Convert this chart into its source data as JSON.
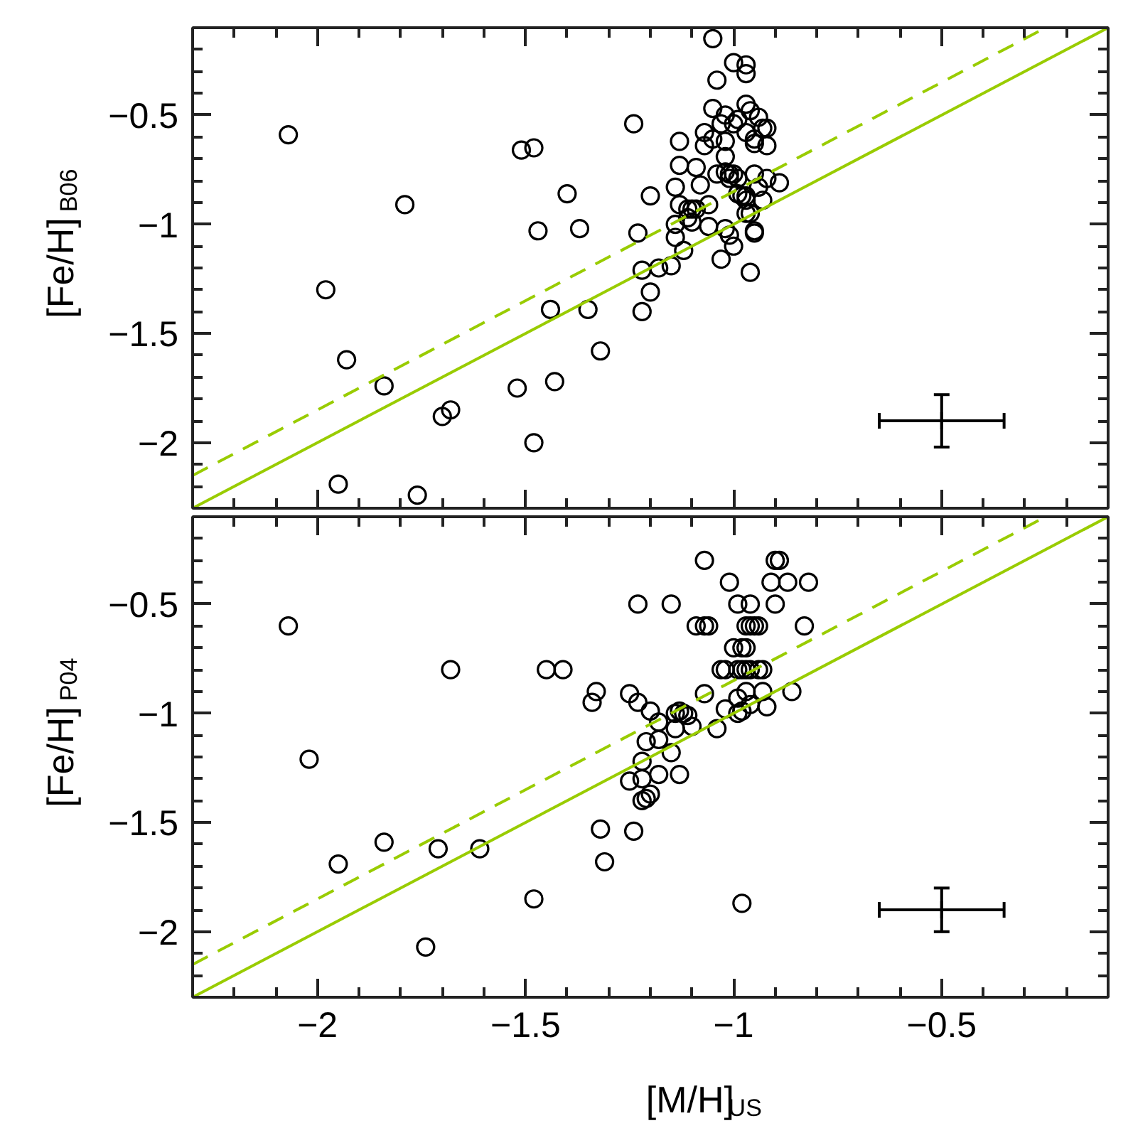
{
  "chart_data": [
    {
      "type": "scatter",
      "ylabel": "[Fe/H]$_{B06}$",
      "xlim": [
        -2.3,
        -0.1
      ],
      "ylim": [
        -2.3,
        -0.1
      ],
      "yticks": [
        {
          "value": -2.2,
          "label": null
        },
        {
          "value": -2.1,
          "label": null
        },
        {
          "value": -2,
          "label": "−2"
        },
        {
          "value": -1.9,
          "label": null
        },
        {
          "value": -1.8,
          "label": null
        },
        {
          "value": -1.7,
          "label": null
        },
        {
          "value": -1.6,
          "label": null
        },
        {
          "value": -1.5,
          "label": "−1.5"
        },
        {
          "value": -1.4,
          "label": null
        },
        {
          "value": -1.3,
          "label": null
        },
        {
          "value": -1.2,
          "label": null
        },
        {
          "value": -1.1,
          "label": null
        },
        {
          "value": -1,
          "label": "−1"
        },
        {
          "value": -0.9,
          "label": null
        },
        {
          "value": -0.8,
          "label": null
        },
        {
          "value": -0.7,
          "label": null
        },
        {
          "value": -0.6,
          "label": null
        },
        {
          "value": -0.5,
          "label": "−0.5"
        },
        {
          "value": -0.4,
          "label": null
        },
        {
          "value": -0.3,
          "label": null
        },
        {
          "value": -0.2,
          "label": null
        }
      ],
      "tick_labels": "y",
      "series": [
        {
          "color": "#000000",
          "marker": "circle",
          "x": [
            -2.07,
            -1.98,
            -1.95,
            -1.93,
            -1.84,
            -1.79,
            -1.76,
            -1.7,
            -1.68,
            -1.52,
            -1.51,
            -1.48,
            -1.48,
            -1.47,
            -1.44,
            -1.43,
            -1.4,
            -1.37,
            -1.35,
            -1.32,
            -1.24,
            -1.23,
            -1.22,
            -1.22,
            -1.2,
            -1.2,
            -1.18,
            -1.15,
            -1.14,
            -1.14,
            -1.14,
            -1.13,
            -1.13,
            -1.13,
            -1.12,
            -1.05,
            -1.0,
            -0.97,
            -0.97,
            -1.04,
            -0.97,
            -1.05,
            -0.96,
            -1.02,
            -0.99,
            -0.94,
            -1.03,
            -1.0,
            -0.93,
            -0.92,
            -0.97,
            -1.07,
            -1.05,
            -1.07,
            -1.02,
            -0.95,
            -0.95,
            -0.92,
            -1.02,
            -1.09,
            -1.04,
            -1.02,
            -1.01,
            -1.01,
            -1.0,
            -0.99,
            -0.95,
            -0.92,
            -0.89,
            -0.94,
            -1.08,
            -0.99,
            -0.98,
            -0.97,
            -0.97,
            -0.93,
            -1.06,
            -1.11,
            -1.1,
            -1.09,
            -0.97,
            -0.96,
            -1.11,
            -1.1,
            -1.06,
            -1.02,
            -1.01,
            -0.95,
            -0.95,
            -1.0,
            -1.03,
            -0.96
          ],
          "values": [
            -0.59,
            -1.3,
            -2.19,
            -1.62,
            -1.74,
            -0.91,
            -2.24,
            -1.88,
            -1.85,
            -1.75,
            -0.66,
            -0.65,
            -2.0,
            -1.03,
            -1.39,
            -1.72,
            -0.86,
            -1.02,
            -1.39,
            -1.58,
            -0.54,
            -1.04,
            -1.4,
            -1.21,
            -0.87,
            -1.31,
            -1.2,
            -1.19,
            -1.06,
            -1.0,
            -0.83,
            -0.73,
            -0.62,
            -0.91,
            -1.12,
            -0.15,
            -0.26,
            -0.27,
            -0.31,
            -0.34,
            -0.45,
            -0.47,
            -0.48,
            -0.5,
            -0.52,
            -0.51,
            -0.54,
            -0.54,
            -0.56,
            -0.56,
            -0.58,
            -0.58,
            -0.61,
            -0.64,
            -0.62,
            -0.61,
            -0.63,
            -0.64,
            -0.69,
            -0.74,
            -0.77,
            -0.76,
            -0.77,
            -0.79,
            -0.77,
            -0.79,
            -0.77,
            -0.79,
            -0.81,
            -0.83,
            -0.82,
            -0.86,
            -0.87,
            -0.89,
            -0.87,
            -0.89,
            -0.91,
            -0.93,
            -0.93,
            -0.93,
            -0.95,
            -0.95,
            -0.97,
            -0.99,
            -1.01,
            -1.02,
            -1.05,
            -1.03,
            -1.04,
            -1.1,
            -1.16,
            -1.22
          ]
        },
        {
          "type": "line",
          "color": "#99cc00",
          "line_style": "solid",
          "x": [
            -2.3,
            -0.1
          ],
          "values": [
            -2.3,
            -0.1
          ]
        },
        {
          "type": "line",
          "color": "#99cc00",
          "line_style": "dashed",
          "x": [
            -2.3,
            -0.25
          ],
          "values": [
            -2.15,
            -0.1
          ]
        },
        {
          "color": "#000000",
          "marker": "cross",
          "x": [
            -0.5
          ],
          "values": [
            -1.9
          ],
          "errors": [
            0.12
          ],
          "xerrors": [
            0.15
          ]
        }
      ]
    },
    {
      "type": "scatter",
      "xlabel": "[M/H]$_{US}$",
      "ylabel": "[Fe/H]$_{P04}$",
      "xlim": [
        -2.3,
        -0.1
      ],
      "ylim": [
        -2.3,
        -0.1
      ],
      "xticks": [
        {
          "value": -2.2,
          "label": null
        },
        {
          "value": -2.1,
          "label": null
        },
        {
          "value": -2,
          "label": "−2"
        },
        {
          "value": -1.9,
          "label": null
        },
        {
          "value": -1.8,
          "label": null
        },
        {
          "value": -1.7,
          "label": null
        },
        {
          "value": -1.6,
          "label": null
        },
        {
          "value": -1.5,
          "label": "−1.5"
        },
        {
          "value": -1.4,
          "label": null
        },
        {
          "value": -1.3,
          "label": null
        },
        {
          "value": -1.2,
          "label": null
        },
        {
          "value": -1.1,
          "label": null
        },
        {
          "value": -1,
          "label": "−1"
        },
        {
          "value": -0.9,
          "label": null
        },
        {
          "value": -0.8,
          "label": null
        },
        {
          "value": -0.7,
          "label": null
        },
        {
          "value": -0.6,
          "label": null
        },
        {
          "value": -0.5,
          "label": "−0.5"
        },
        {
          "value": -0.4,
          "label": null
        },
        {
          "value": -0.3,
          "label": null
        },
        {
          "value": -0.2,
          "label": null
        }
      ],
      "yticks": [
        {
          "value": -2.2,
          "label": null
        },
        {
          "value": -2.1,
          "label": null
        },
        {
          "value": -2,
          "label": "−2"
        },
        {
          "value": -1.9,
          "label": null
        },
        {
          "value": -1.8,
          "label": null
        },
        {
          "value": -1.7,
          "label": null
        },
        {
          "value": -1.6,
          "label": null
        },
        {
          "value": -1.5,
          "label": "−1.5"
        },
        {
          "value": -1.4,
          "label": null
        },
        {
          "value": -1.3,
          "label": null
        },
        {
          "value": -1.2,
          "label": null
        },
        {
          "value": -1.1,
          "label": null
        },
        {
          "value": -1,
          "label": "−1"
        },
        {
          "value": -0.9,
          "label": null
        },
        {
          "value": -0.8,
          "label": null
        },
        {
          "value": -0.7,
          "label": null
        },
        {
          "value": -0.6,
          "label": null
        },
        {
          "value": -0.5,
          "label": "−0.5"
        },
        {
          "value": -0.4,
          "label": null
        },
        {
          "value": -0.3,
          "label": null
        },
        {
          "value": -0.2,
          "label": null
        }
      ],
      "series": [
        {
          "color": "#000000",
          "marker": "circle",
          "x": [
            -2.07,
            -2.02,
            -1.95,
            -1.84,
            -1.74,
            -1.71,
            -1.68,
            -1.61,
            -1.48,
            -1.45,
            -1.41,
            -1.34,
            -1.33,
            -1.32,
            -1.31,
            -1.25,
            -1.25,
            -1.24,
            -1.23,
            -1.23,
            -1.22,
            -1.22,
            -1.22,
            -1.21,
            -1.2,
            -1.21,
            -1.2,
            -1.18,
            -1.18,
            -1.18,
            -1.15,
            -1.15,
            -1.14,
            -1.14,
            -1.13,
            -1.07,
            -0.9,
            -0.89,
            -1.01,
            -0.91,
            -0.87,
            -0.82,
            -0.99,
            -0.96,
            -0.9,
            -1.09,
            -1.07,
            -1.06,
            -0.97,
            -0.96,
            -0.95,
            -0.94,
            -0.83,
            -1.0,
            -0.98,
            -0.97,
            -1.03,
            -1.02,
            -0.99,
            -0.98,
            -0.97,
            -0.96,
            -0.94,
            -0.93,
            -1.07,
            -1.13,
            -1.12,
            -1.11,
            -1.1,
            -1.04,
            -1.02,
            -0.99,
            -0.99,
            -0.98,
            -0.97,
            -0.96,
            -0.93,
            -0.92,
            -0.86,
            -0.98
          ],
          "values": [
            -0.6,
            -1.21,
            -1.69,
            -1.59,
            -2.07,
            -1.62,
            -0.8,
            -1.62,
            -1.85,
            -0.8,
            -0.8,
            -0.95,
            -0.9,
            -1.53,
            -1.68,
            -0.91,
            -1.31,
            -1.54,
            -0.5,
            -0.95,
            -1.22,
            -1.3,
            -1.4,
            -1.39,
            -1.37,
            -1.13,
            -0.99,
            -1.04,
            -1.12,
            -1.28,
            -0.5,
            -1.18,
            -1.07,
            -1.0,
            -1.28,
            -0.3,
            -0.3,
            -0.3,
            -0.4,
            -0.4,
            -0.4,
            -0.4,
            -0.5,
            -0.5,
            -0.5,
            -0.6,
            -0.6,
            -0.6,
            -0.6,
            -0.6,
            -0.6,
            -0.6,
            -0.6,
            -0.7,
            -0.7,
            -0.7,
            -0.8,
            -0.8,
            -0.8,
            -0.8,
            -0.8,
            -0.8,
            -0.8,
            -0.8,
            -0.91,
            -0.99,
            -1.0,
            -1.01,
            -1.06,
            -1.07,
            -0.98,
            -0.93,
            -1.0,
            -0.99,
            -0.9,
            -0.96,
            -0.9,
            -0.97,
            -0.9,
            -1.87
          ]
        },
        {
          "type": "line",
          "color": "#99cc00",
          "line_style": "solid",
          "x": [
            -2.3,
            -0.1
          ],
          "values": [
            -2.3,
            -0.1
          ]
        },
        {
          "type": "line",
          "color": "#99cc00",
          "line_style": "dashed",
          "x": [
            -2.3,
            -0.25
          ],
          "values": [
            -2.15,
            -0.1
          ]
        },
        {
          "color": "#000000",
          "marker": "cross",
          "x": [
            -0.5
          ],
          "values": [
            -1.9
          ],
          "errors": [
            0.1
          ],
          "xerrors": [
            0.15
          ]
        }
      ]
    }
  ]
}
